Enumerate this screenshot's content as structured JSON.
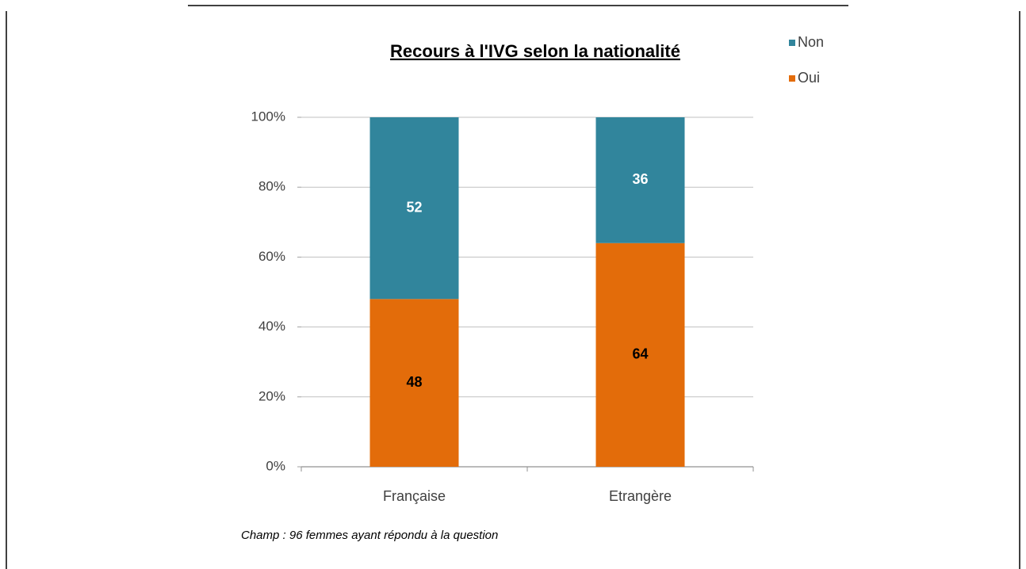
{
  "chart_data": {
    "type": "stacked-bar",
    "title": "Recours à l'IVG selon la nationalité",
    "categories": [
      "Française",
      "Etrangère"
    ],
    "series": [
      {
        "name": "Oui",
        "color": "#e36c0a",
        "label_color": "#000000",
        "values": [
          48,
          64
        ]
      },
      {
        "name": "Non",
        "color": "#31859c",
        "label_color": "#ffffff",
        "values": [
          52,
          36
        ]
      }
    ],
    "ylim": [
      0,
      100
    ],
    "yticks": [
      {
        "value": 0,
        "label": "0%"
      },
      {
        "value": 20,
        "label": "20%"
      },
      {
        "value": 40,
        "label": "40%"
      },
      {
        "value": 60,
        "label": "60%"
      },
      {
        "value": 80,
        "label": "80%"
      },
      {
        "value": 100,
        "label": "100%"
      }
    ],
    "grid": true,
    "note": "Champ : 96 femmes ayant répondu à la question"
  }
}
